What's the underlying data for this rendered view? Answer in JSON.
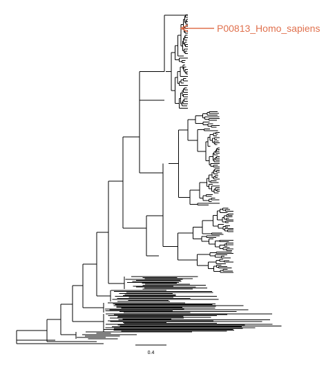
{
  "highlight": {
    "label": "P00813_Homo_sapiens",
    "color": "#E0704D"
  },
  "scale_bar": {
    "label": "0.4"
  },
  "branch_color": "#000000",
  "background": "#ffffff"
}
